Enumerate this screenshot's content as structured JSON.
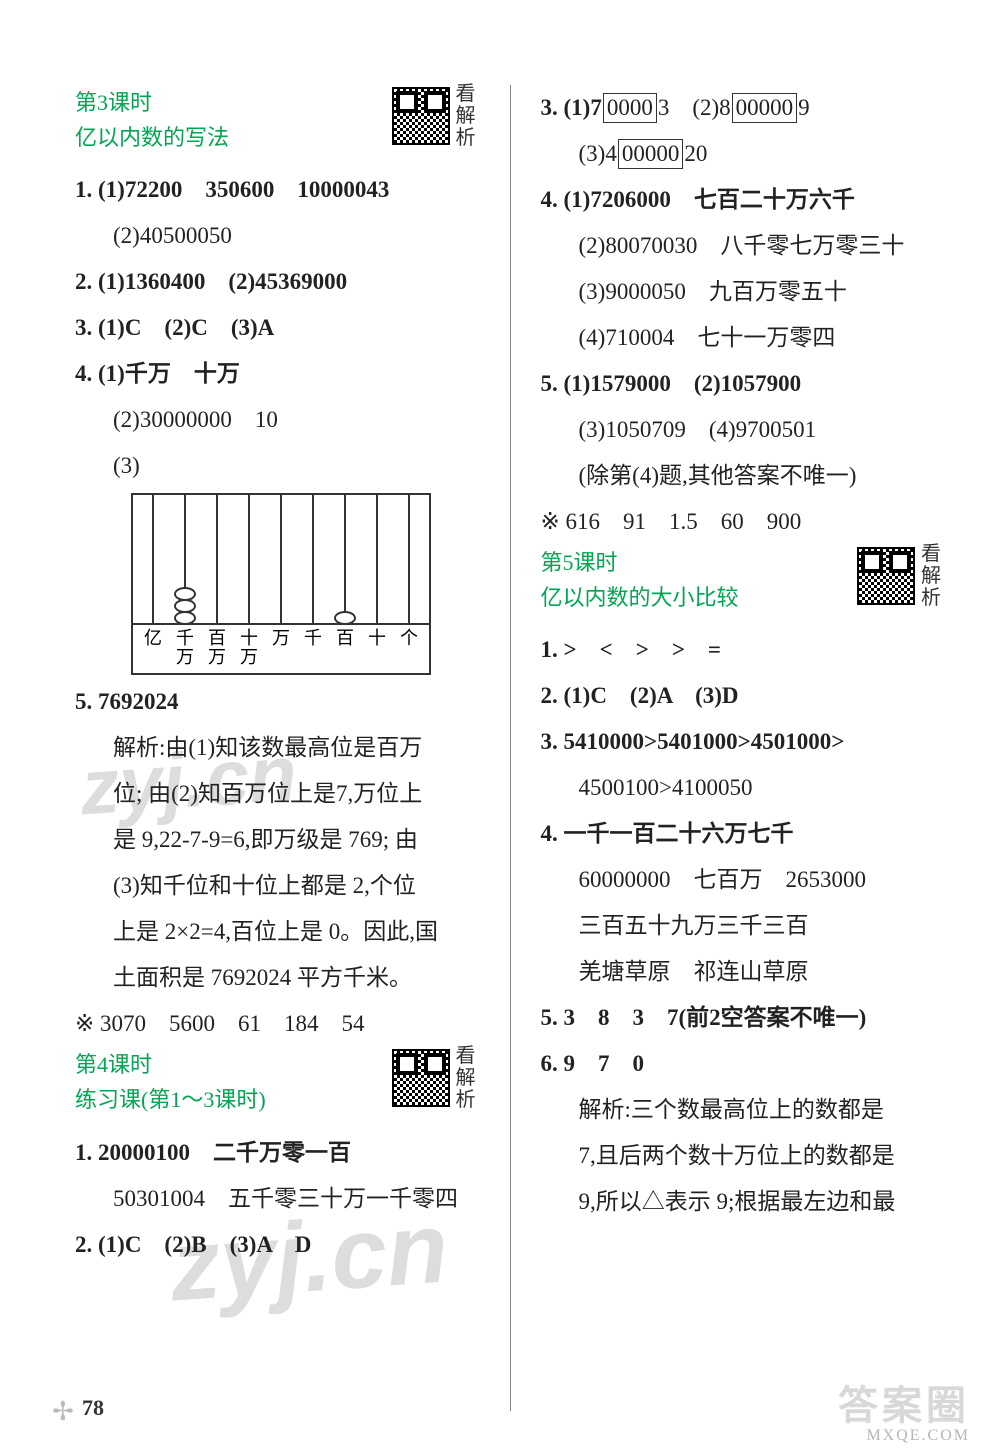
{
  "page_number": "78",
  "watermarks": {
    "wm1": "zyj.cn",
    "wm2": "zyj.cn"
  },
  "footer": {
    "main": "答案圈",
    "sub": "MXQE.COM"
  },
  "qr_label": "看解析",
  "left": {
    "lesson3": {
      "title": "第3课时",
      "sub": "亿以内数的写法"
    },
    "l1_1": "1. (1)72200　350600　10000043",
    "l1_2": "(2)40500050",
    "l2": "2. (1)1360400　(2)45369000",
    "l3": "3. (1)C　(2)C　(3)A",
    "l4_1": "4. (1)千万　十万",
    "l4_2": "(2)30000000　10",
    "l4_3": "(3)",
    "abacus_labels": [
      "亿",
      "千万",
      "百万",
      "十万",
      "万",
      "千",
      "百",
      "十",
      "个"
    ],
    "abacus_beads": [
      0,
      3,
      0,
      0,
      0,
      0,
      1,
      0,
      0
    ],
    "l5": "5. 7692024",
    "l5a": "解析:由(1)知该数最高位是百万",
    "l5b": "位; 由(2)知百万位上是7,万位上",
    "l5c": "是 9,22-7-9=6,即万级是 769; 由",
    "l5d": "(3)知千位和十位上都是 2,个位",
    "l5e": "上是 2×2=4,百位上是 0。因此,国",
    "l5f": "土面积是 7692024 平方千米。",
    "lstar": "※ 3070　5600　61　184　54",
    "lesson4": {
      "title": "第4课时",
      "sub": "练习课(第1～3课时)"
    },
    "p4_1a": "1. 20000100　二千万零一百",
    "p4_1b": "50301004　五千零三十万一千零四",
    "p4_2": "2. (1)C　(2)B　(3)A　D"
  },
  "right": {
    "r3_1a": "3. (1)7",
    "r3_1b": "0000",
    "r3_1c": "3　(2)8",
    "r3_1d": "00000",
    "r3_1e": "9",
    "r3_2a": "(3)4",
    "r3_2b": "00000",
    "r3_2c": "20",
    "r4_1": "4. (1)7206000　七百二十万六千",
    "r4_2": "(2)80070030　八千零七万零三十",
    "r4_3": "(3)9000050　九百万零五十",
    "r4_4": "(4)710004　七十一万零四",
    "r5_1": "5. (1)1579000　(2)1057900",
    "r5_2": "(3)1050709　(4)9700501",
    "r5_3": "(除第(4)题,其他答案不唯一)",
    "rstar": "※ 616　91　1.5　60　900",
    "lesson5": {
      "title": "第5课时",
      "sub": "亿以内数的大小比较"
    },
    "p5_1": "1. >　<　>　>　=",
    "p5_2": "2. (1)C　(2)A　(3)D",
    "p5_3a": "3. 5410000>5401000>4501000>",
    "p5_3b": "4500100>4100050",
    "p5_4a": "4. 一千一百二十六万七千",
    "p5_4b": "60000000　七百万　2653000",
    "p5_4c": "三百五十九万三千三百",
    "p5_4d": "羌塘草原　祁连山草原",
    "p5_5": "5. 3　8　3　7(前2空答案不唯一)",
    "p5_6": "6. 9　7　0",
    "p5_6a": "解析:三个数最高位上的数都是",
    "p5_6b": "7,且后两个数十万位上的数都是",
    "p5_6c": "9,所以△表示 9;根据最左边和最"
  },
  "colors": {
    "heading": "#00a651",
    "text": "#222222",
    "border": "#333333",
    "watermark": "rgba(120,120,120,0.25)"
  }
}
